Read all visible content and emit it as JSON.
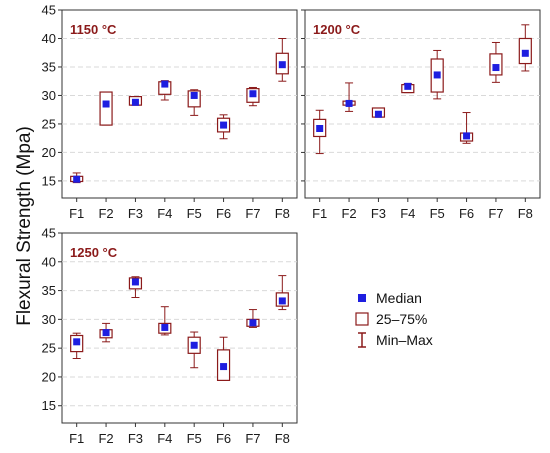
{
  "chart_data": {
    "type": "boxplot",
    "ylabel": "Flexural Strength (Mpa)",
    "categories": [
      "F1",
      "F2",
      "F3",
      "F4",
      "F5",
      "F6",
      "F7",
      "F8"
    ],
    "ylim": [
      12,
      45
    ],
    "yticks": [
      15,
      20,
      25,
      30,
      35,
      40,
      45
    ],
    "grid": true,
    "colors": {
      "box": "#8b1a1a",
      "median": "#1e1ee0",
      "grid": "#d9d9d9",
      "title": "#8b1a1a"
    },
    "panels": [
      {
        "title": "1150 °C",
        "median": [
          15.3,
          28.5,
          28.8,
          32.0,
          30.0,
          24.8,
          30.3,
          35.4
        ],
        "q1": [
          14.9,
          24.8,
          28.3,
          30.2,
          28.0,
          23.6,
          28.8,
          33.8
        ],
        "q3": [
          15.8,
          30.6,
          29.8,
          32.4,
          30.8,
          26.0,
          31.2,
          37.4
        ],
        "min": [
          14.7,
          24.8,
          28.3,
          29.2,
          26.5,
          22.4,
          28.2,
          32.5
        ],
        "max": [
          16.4,
          30.6,
          29.8,
          32.6,
          31.0,
          26.6,
          31.4,
          40.0
        ]
      },
      {
        "title": "1200 °C",
        "median": [
          24.2,
          28.6,
          26.7,
          31.6,
          33.6,
          22.9,
          34.9,
          37.4
        ],
        "q1": [
          22.8,
          28.3,
          26.2,
          30.5,
          30.6,
          22.0,
          33.6,
          35.6
        ],
        "q3": [
          25.8,
          29.0,
          27.8,
          31.9,
          36.4,
          23.4,
          37.3,
          40.0
        ],
        "min": [
          19.8,
          27.2,
          26.2,
          30.5,
          29.4,
          21.6,
          32.3,
          34.3
        ],
        "max": [
          27.4,
          32.2,
          27.8,
          32.1,
          37.9,
          27.0,
          39.3,
          42.4
        ]
      },
      {
        "title": "1250 °C",
        "median": [
          26.1,
          27.7,
          36.5,
          28.6,
          25.5,
          21.8,
          29.4,
          33.2
        ],
        "q1": [
          24.4,
          26.8,
          35.3,
          27.6,
          24.1,
          19.4,
          28.8,
          32.3
        ],
        "q3": [
          27.2,
          28.2,
          37.2,
          29.3,
          26.9,
          24.7,
          30.0,
          34.6
        ],
        "min": [
          23.2,
          26.1,
          33.8,
          27.3,
          21.6,
          19.4,
          28.6,
          31.7
        ],
        "max": [
          27.6,
          29.3,
          37.4,
          32.2,
          27.8,
          26.9,
          31.7,
          37.6
        ]
      }
    ],
    "legend": {
      "placement": "bottom-right",
      "entries": [
        {
          "symbol": "median-square",
          "label": "Median"
        },
        {
          "symbol": "box",
          "label": "25–75%"
        },
        {
          "symbol": "whisker",
          "label": "Min–Max"
        }
      ]
    }
  }
}
